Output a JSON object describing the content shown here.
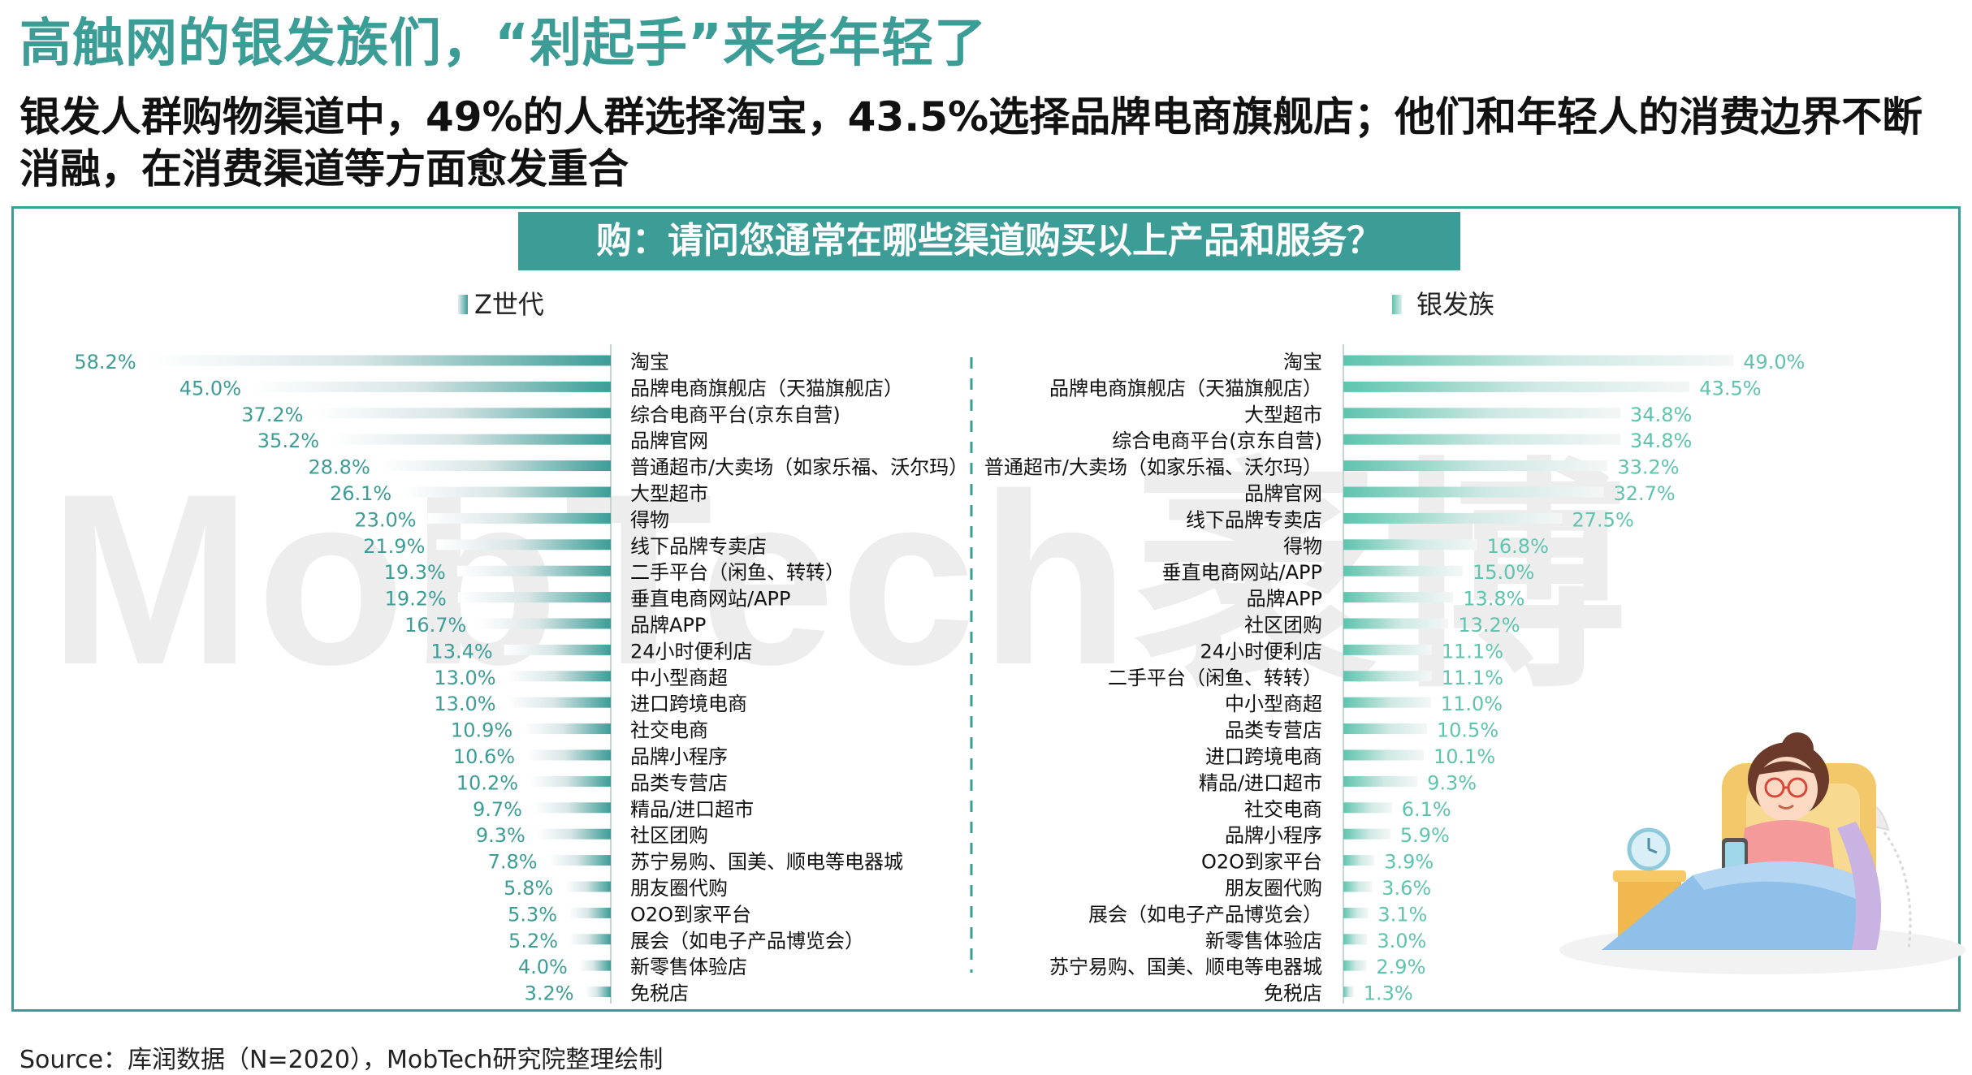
{
  "title": "高触网的银发族们，“剁起手”来老年轻了",
  "subtitle": "银发人群购物渠道中，49%的人群选择淘宝，43.5%选择品牌电商旗舰店；他们和年轻人的消费边界不断消融，在消费渠道等方面愈发重合",
  "question": "购：请问您通常在哪些渠道购买以上产品和服务？",
  "watermark": "MobTech袤博",
  "source": "Source：库润数据（N=2020），MobTech研究院整理绘制",
  "colors": {
    "accent": "#3c9d97",
    "silver_bar": "#5ec4ae"
  },
  "chart_data": [
    {
      "type": "bar",
      "orientation": "horizontal",
      "legend": "Z世代",
      "unit": "%",
      "categories": [
        "淘宝",
        "品牌电商旗舰店（天猫旗舰店）",
        "综合电商平台(京东自营)",
        "品牌官网",
        "普通超市/大卖场（如家乐福、沃尔玛）",
        "大型超市",
        "得物",
        "线下品牌专卖店",
        "二手平台（闲鱼、转转）",
        "垂直电商网站/APP",
        "品牌APP",
        "24小时便利店",
        "中小型商超",
        "进口跨境电商",
        "社交电商",
        "品牌小程序",
        "品类专营店",
        "精品/进口超市",
        "社区团购",
        "苏宁易购、国美、顺电等电器城",
        "朋友圈代购",
        "O2O到家平台",
        "展会（如电子产品博览会）",
        "新零售体验店",
        "免税店"
      ],
      "values": [
        58.2,
        45.0,
        37.2,
        35.2,
        28.8,
        26.1,
        23.0,
        21.9,
        19.3,
        19.2,
        16.7,
        13.4,
        13.0,
        13.0,
        10.9,
        10.6,
        10.2,
        9.7,
        9.3,
        7.8,
        5.8,
        5.3,
        5.2,
        4.0,
        3.2
      ],
      "value_labels": [
        "58.2%",
        "45.0%",
        "37.2%",
        "35.2%",
        "28.8%",
        "26.1%",
        "23.0%",
        "21.9%",
        "19.3%",
        "19.2%",
        "16.7%",
        "13.4%",
        "13.0%",
        "13.0%",
        "10.9%",
        "10.6%",
        "10.2%",
        "9.7%",
        "9.3%",
        "7.8%",
        "5.8%",
        "5.3%",
        "5.2%",
        "4.0%",
        "3.2%"
      ],
      "xlim": [
        0,
        60
      ]
    },
    {
      "type": "bar",
      "orientation": "horizontal",
      "legend": "银发族",
      "unit": "%",
      "categories": [
        "淘宝",
        "品牌电商旗舰店（天猫旗舰店）",
        "大型超市",
        "综合电商平台(京东自营)",
        "普通超市/大卖场（如家乐福、沃尔玛）",
        "品牌官网",
        "线下品牌专卖店",
        "得物",
        "垂直电商网站/APP",
        "品牌APP",
        "社区团购",
        "24小时便利店",
        "二手平台（闲鱼、转转）",
        "中小型商超",
        "品类专营店",
        "进口跨境电商",
        "精品/进口超市",
        "社交电商",
        "品牌小程序",
        "O2O到家平台",
        "朋友圈代购",
        "展会（如电子产品博览会）",
        "新零售体验店",
        "苏宁易购、国美、顺电等电器城",
        "免税店"
      ],
      "values": [
        49.0,
        43.5,
        34.8,
        34.8,
        33.2,
        32.7,
        27.5,
        16.8,
        15.0,
        13.8,
        13.2,
        11.1,
        11.1,
        11.0,
        10.5,
        10.1,
        9.3,
        6.1,
        5.9,
        3.9,
        3.6,
        3.1,
        3.0,
        2.9,
        1.3
      ],
      "value_labels": [
        "49.0%",
        "43.5%",
        "34.8%",
        "34.8%",
        "33.2%",
        "32.7%",
        "27.5%",
        "16.8%",
        "15.0%",
        "13.8%",
        "13.2%",
        "11.1%",
        "11.1%",
        "11.0%",
        "10.5%",
        "10.1%",
        "9.3%",
        "6.1%",
        "5.9%",
        "3.9%",
        "3.6%",
        "3.1%",
        "3.0%",
        "2.9%",
        "1.3%"
      ],
      "xlim": [
        0,
        60
      ]
    }
  ]
}
